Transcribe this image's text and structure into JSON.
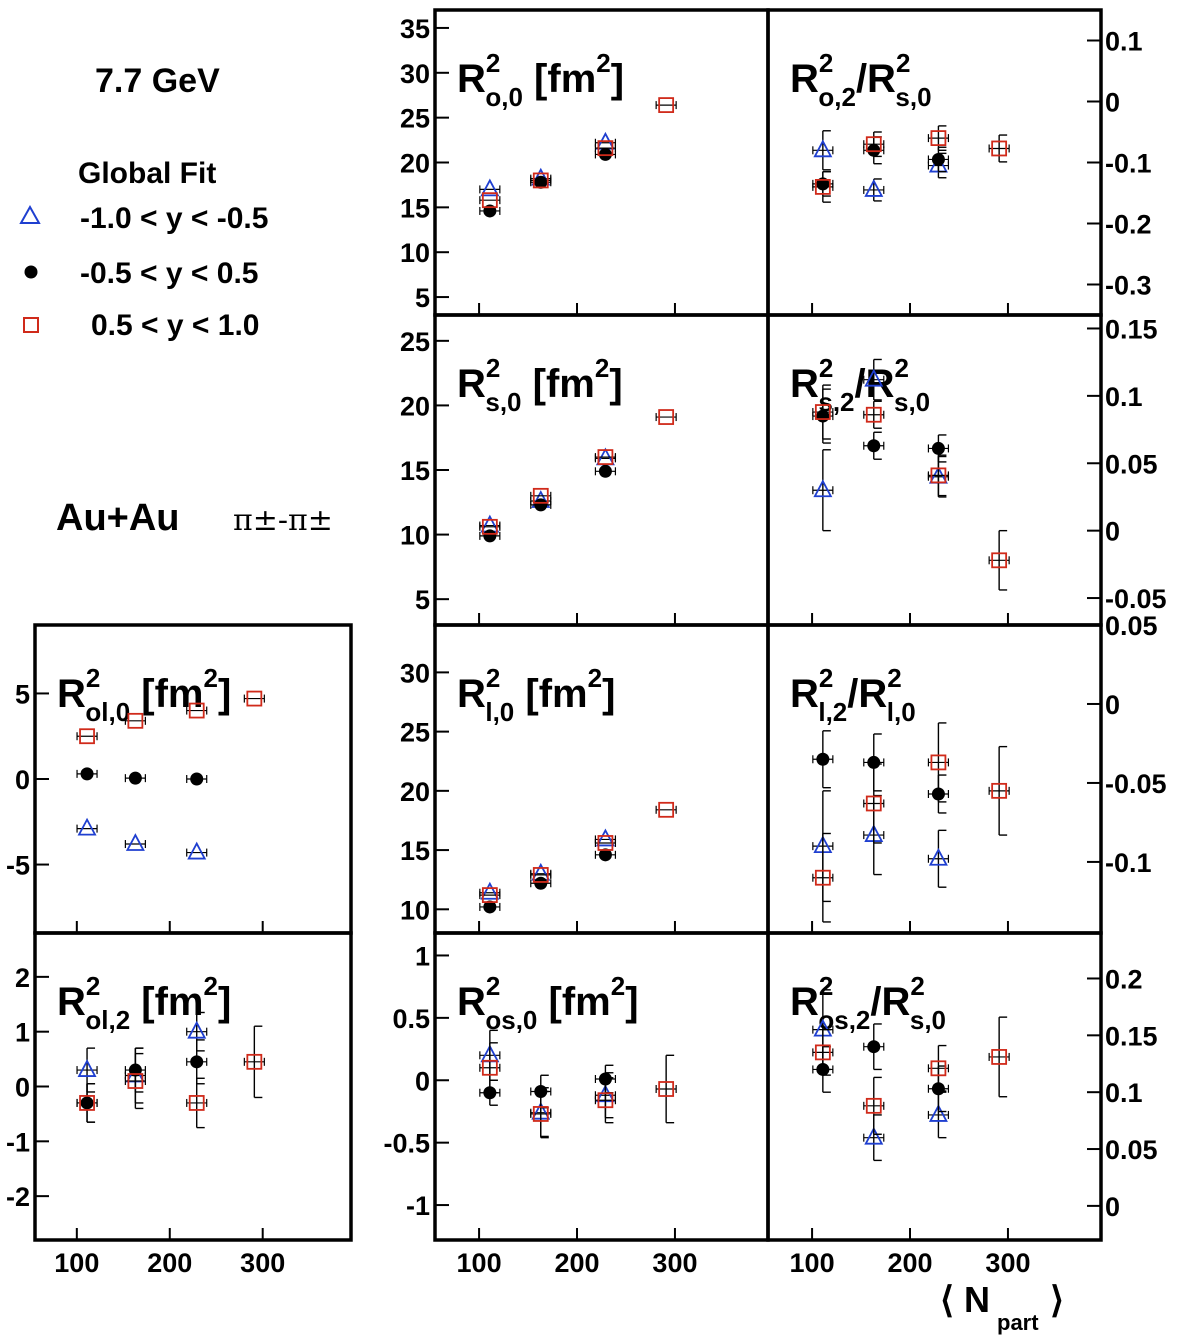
{
  "energy_label": "7.7 GeV",
  "legend_title": "Global Fit",
  "system_label": "Au+Au",
  "pair_label": "π±-π±",
  "xaxis_label": "⟨ N",
  "xaxis_label_sub": "part",
  "xaxis_label_end": "⟩",
  "legend": [
    {
      "label": "-1.0 < y < -0.5",
      "marker": "triangle",
      "color": "#1f3fd0"
    },
    {
      "label": "-0.5 < y < 0.5",
      "marker": "circle",
      "color": "#000000"
    },
    {
      "label": "0.5 < y < 1.0",
      "marker": "square",
      "color": "#d02a1a"
    }
  ],
  "chart_data": [
    {
      "id": "Ro0",
      "type": "scatter",
      "title": {
        "main": "R",
        "sup": "2",
        "sub": "o,0",
        "suffix": " [fm",
        "suffix_sup": "2",
        "suffix_end": "]"
      },
      "xlim": [
        55,
        395
      ],
      "ylim": [
        3,
        37
      ],
      "yticks": [
        5,
        10,
        15,
        20,
        25,
        30,
        35
      ],
      "ytick_side": "left",
      "xticks": [
        100,
        200,
        300
      ],
      "xtick_labels": false,
      "series": [
        {
          "marker": "triangle",
          "points": [
            [
              111,
              17.0,
              0
            ],
            [
              163,
              18.2,
              0
            ],
            [
              229,
              22.2,
              0
            ]
          ]
        },
        {
          "marker": "circle",
          "points": [
            [
              111,
              14.6,
              0
            ],
            [
              163,
              17.8,
              0
            ],
            [
              229,
              20.9,
              0
            ]
          ]
        },
        {
          "marker": "square",
          "points": [
            [
              111,
              15.8,
              0
            ],
            [
              163,
              18.0,
              0
            ],
            [
              229,
              21.6,
              0
            ],
            [
              291,
              26.4,
              0
            ]
          ]
        }
      ]
    },
    {
      "id": "Ro2",
      "type": "scatter",
      "title": {
        "main": "R",
        "sup": "2",
        "sub": "o,2",
        "suffix": "/R",
        "suffix_sup": "2",
        "suffix_sub": "s,0",
        "suffix_end": ""
      },
      "xlim": [
        55,
        395
      ],
      "ylim": [
        -0.35,
        0.15
      ],
      "yticks": [
        -0.3,
        -0.2,
        -0.1,
        0,
        0.1
      ],
      "ytick_labels": [
        "-0.3",
        "-0.2",
        "-0.1",
        "0",
        "0.1"
      ],
      "ytick_side": "right",
      "xticks": [
        100,
        200,
        300
      ],
      "xtick_labels": false,
      "series": [
        {
          "marker": "triangle",
          "points": [
            [
              111,
              -0.08,
              0.032
            ],
            [
              163,
              -0.145,
              0.018
            ],
            [
              229,
              -0.105,
              0.02
            ]
          ]
        },
        {
          "marker": "circle",
          "points": [
            [
              111,
              -0.135,
              0.02
            ],
            [
              163,
              -0.08,
              0.022
            ],
            [
              229,
              -0.095,
              0.02
            ]
          ]
        },
        {
          "marker": "square",
          "points": [
            [
              111,
              -0.14,
              0.025
            ],
            [
              163,
              -0.07,
              0.02
            ],
            [
              229,
              -0.06,
              0.02
            ],
            [
              291,
              -0.077,
              0.022
            ]
          ]
        }
      ]
    },
    {
      "id": "Rs0",
      "type": "scatter",
      "title": {
        "main": "R",
        "sup": "2",
        "sub": "s,0",
        "suffix": " [fm",
        "suffix_sup": "2",
        "suffix_end": "]"
      },
      "xlim": [
        55,
        395
      ],
      "ylim": [
        3,
        27
      ],
      "yticks": [
        5,
        10,
        15,
        20,
        25
      ],
      "ytick_side": "left",
      "xticks": [
        100,
        200,
        300
      ],
      "xtick_labels": false,
      "series": [
        {
          "marker": "triangle",
          "points": [
            [
              111,
              10.7,
              0
            ],
            [
              163,
              12.6,
              0
            ],
            [
              229,
              15.9,
              0
            ]
          ]
        },
        {
          "marker": "circle",
          "points": [
            [
              111,
              9.9,
              0
            ],
            [
              163,
              12.3,
              0
            ],
            [
              229,
              14.9,
              0
            ]
          ]
        },
        {
          "marker": "square",
          "points": [
            [
              111,
              10.6,
              0
            ],
            [
              163,
              13.0,
              0
            ],
            [
              229,
              16.0,
              0
            ],
            [
              291,
              19.1,
              0
            ]
          ]
        }
      ]
    },
    {
      "id": "Rs2",
      "type": "scatter",
      "title": {
        "main": "R",
        "sup": "2",
        "sub": "s,2",
        "suffix": "/R",
        "suffix_sup": "2",
        "suffix_sub": "s,0",
        "suffix_end": ""
      },
      "xlim": [
        55,
        395
      ],
      "ylim": [
        -0.07,
        0.16
      ],
      "yticks": [
        -0.05,
        0,
        0.05,
        0.1,
        0.15
      ],
      "ytick_labels": [
        "-0.05",
        "0",
        "0.05",
        "0.1",
        "0.15"
      ],
      "ytick_side": "right",
      "xticks": [
        100,
        200,
        300
      ],
      "xtick_labels": false,
      "series": [
        {
          "marker": "triangle",
          "points": [
            [
              111,
              0.03,
              0.03
            ],
            [
              163,
              0.112,
              0.015
            ],
            [
              229,
              0.04,
              0.015
            ]
          ]
        },
        {
          "marker": "circle",
          "points": [
            [
              111,
              0.085,
              0.02
            ],
            [
              163,
              0.063,
              0.01
            ],
            [
              229,
              0.061,
              0.01
            ]
          ]
        },
        {
          "marker": "square",
          "points": [
            [
              111,
              0.088,
              0.02
            ],
            [
              163,
              0.086,
              0.01
            ],
            [
              229,
              0.041,
              0.015
            ],
            [
              291,
              -0.022,
              0.022
            ]
          ]
        }
      ]
    },
    {
      "id": "Rl0",
      "type": "scatter",
      "title": {
        "main": "R",
        "sup": "2",
        "sub": "l,0",
        "suffix": " [fm",
        "suffix_sup": "2",
        "suffix_end": "]"
      },
      "xlim": [
        55,
        395
      ],
      "ylim": [
        8,
        34
      ],
      "yticks": [
        10,
        15,
        20,
        25,
        30
      ],
      "ytick_side": "left",
      "xticks": [
        100,
        200,
        300
      ],
      "xtick_labels": false,
      "series": [
        {
          "marker": "triangle",
          "points": [
            [
              111,
              11.4,
              0
            ],
            [
              163,
              13.0,
              0
            ],
            [
              229,
              15.9,
              0
            ]
          ]
        },
        {
          "marker": "circle",
          "points": [
            [
              111,
              10.2,
              0
            ],
            [
              163,
              12.2,
              0
            ],
            [
              229,
              14.6,
              0
            ]
          ]
        },
        {
          "marker": "square",
          "points": [
            [
              111,
              11.2,
              0
            ],
            [
              163,
              12.9,
              0
            ],
            [
              229,
              15.6,
              0
            ],
            [
              291,
              18.4,
              0
            ]
          ]
        }
      ]
    },
    {
      "id": "Rl2",
      "type": "scatter",
      "title": {
        "main": "R",
        "sup": "2",
        "sub": "l,2",
        "suffix": "/R",
        "suffix_sup": "2",
        "suffix_sub": "l,0",
        "suffix_end": ""
      },
      "xlim": [
        55,
        395
      ],
      "ylim": [
        -0.145,
        0.05
      ],
      "yticks": [
        -0.1,
        -0.05,
        0,
        0.05
      ],
      "ytick_labels": [
        "-0.1",
        "-0.05",
        "0",
        "0.05"
      ],
      "ytick_side": "right",
      "xticks": [
        100,
        200,
        300
      ],
      "xtick_labels": false,
      "series": [
        {
          "marker": "triangle",
          "points": [
            [
              111,
              -0.09,
              0.035
            ],
            [
              163,
              -0.083,
              0.025
            ],
            [
              229,
              -0.098,
              0.018
            ]
          ]
        },
        {
          "marker": "circle",
          "points": [
            [
              111,
              -0.035,
              0.018
            ],
            [
              163,
              -0.037,
              0.018
            ],
            [
              229,
              -0.057,
              0.012
            ]
          ]
        },
        {
          "marker": "square",
          "points": [
            [
              111,
              -0.11,
              0.028
            ],
            [
              163,
              -0.063,
              0.025
            ],
            [
              229,
              -0.037,
              0.025
            ],
            [
              291,
              -0.055,
              0.028
            ]
          ]
        }
      ]
    },
    {
      "id": "Rol0",
      "type": "scatter",
      "title": {
        "main": "R",
        "sup": "2",
        "sub": "ol,0",
        "suffix": " [fm",
        "suffix_sup": "2",
        "suffix_end": "]"
      },
      "xlim": [
        55,
        395
      ],
      "ylim": [
        -9,
        9
      ],
      "yticks": [
        -5,
        0,
        5
      ],
      "ytick_labels": [
        "-5",
        "0",
        "5"
      ],
      "ytick_side": "left",
      "xticks": [
        100,
        200,
        300
      ],
      "xtick_labels": false,
      "series": [
        {
          "marker": "triangle",
          "points": [
            [
              111,
              -2.9,
              0
            ],
            [
              163,
              -3.8,
              0
            ],
            [
              229,
              -4.3,
              0
            ]
          ]
        },
        {
          "marker": "circle",
          "points": [
            [
              111,
              0.3,
              0
            ],
            [
              163,
              0.05,
              0
            ],
            [
              229,
              0.0,
              0
            ]
          ]
        },
        {
          "marker": "square",
          "points": [
            [
              111,
              2.5,
              0
            ],
            [
              163,
              3.4,
              0
            ],
            [
              229,
              4.0,
              0
            ],
            [
              291,
              4.7,
              0
            ]
          ]
        }
      ]
    },
    {
      "id": "Rol2",
      "type": "scatter",
      "title": {
        "main": "R",
        "sup": "2",
        "sub": "ol,2",
        "suffix": " [fm",
        "suffix_sup": "2",
        "suffix_end": "]"
      },
      "xlim": [
        55,
        395
      ],
      "ylim": [
        -2.8,
        2.8
      ],
      "yticks": [
        -2,
        -1,
        0,
        1,
        2
      ],
      "ytick_labels": [
        "-2",
        "-1",
        "0",
        "1",
        "2"
      ],
      "ytick_side": "left",
      "xticks": [
        100,
        200,
        300
      ],
      "xtick_labels": true,
      "series": [
        {
          "marker": "triangle",
          "points": [
            [
              111,
              0.3,
              0.4
            ],
            [
              163,
              0.2,
              0.5
            ],
            [
              229,
              1.0,
              0.35
            ]
          ]
        },
        {
          "marker": "circle",
          "points": [
            [
              111,
              -0.3,
              0.35
            ],
            [
              163,
              0.3,
              0.4
            ],
            [
              229,
              0.45,
              0.4
            ]
          ]
        },
        {
          "marker": "square",
          "points": [
            [
              111,
              -0.3,
              0.35
            ],
            [
              163,
              0.1,
              0.5
            ],
            [
              229,
              -0.3,
              0.45
            ],
            [
              291,
              0.45,
              0.65
            ]
          ]
        }
      ]
    },
    {
      "id": "Ros0",
      "type": "scatter",
      "title": {
        "main": "R",
        "sup": "2",
        "sub": "os,0",
        "suffix": " [fm",
        "suffix_sup": "2",
        "suffix_end": "]"
      },
      "xlim": [
        55,
        395
      ],
      "ylim": [
        -1.28,
        1.18
      ],
      "yticks": [
        -1,
        -0.5,
        0,
        0.5,
        1
      ],
      "ytick_labels": [
        "-1",
        "-0.5",
        "0",
        "0.5",
        "1"
      ],
      "ytick_side": "left",
      "xticks": [
        100,
        200,
        300
      ],
      "xtick_labels": true,
      "series": [
        {
          "marker": "triangle",
          "points": [
            [
              111,
              0.2,
              0.2
            ],
            [
              163,
              -0.26,
              0.2
            ],
            [
              229,
              -0.12,
              0.18
            ]
          ]
        },
        {
          "marker": "circle",
          "points": [
            [
              111,
              -0.1,
              0.1
            ],
            [
              163,
              -0.09,
              0.13
            ],
            [
              229,
              0.01,
              0.11
            ]
          ]
        },
        {
          "marker": "square",
          "points": [
            [
              111,
              0.1,
              0.2
            ],
            [
              163,
              -0.27,
              0.18
            ],
            [
              229,
              -0.16,
              0.18
            ],
            [
              291,
              -0.07,
              0.27
            ]
          ]
        }
      ]
    },
    {
      "id": "Ros2",
      "type": "scatter",
      "title": {
        "main": "R",
        "sup": "2",
        "sub": "os,2",
        "suffix": "/R",
        "suffix_sup": "2",
        "suffix_sub": "s,0",
        "suffix_end": ""
      },
      "xlim": [
        55,
        395
      ],
      "ylim": [
        -0.03,
        0.24
      ],
      "yticks": [
        0,
        0.05,
        0.1,
        0.15,
        0.2
      ],
      "ytick_labels": [
        "0",
        "0.05",
        "0.1",
        "0.15",
        "0.2"
      ],
      "ytick_side": "right",
      "xticks": [
        100,
        200,
        300
      ],
      "xtick_labels": true,
      "series": [
        {
          "marker": "triangle",
          "points": [
            [
              111,
              0.155,
              0.035
            ],
            [
              163,
              0.06,
              0.02
            ],
            [
              229,
              0.08,
              0.02
            ]
          ]
        },
        {
          "marker": "circle",
          "points": [
            [
              111,
              0.12,
              0.02
            ],
            [
              163,
              0.14,
              0.02
            ],
            [
              229,
              0.103,
              0.02
            ]
          ]
        },
        {
          "marker": "square",
          "points": [
            [
              111,
              0.135,
              0.02
            ],
            [
              163,
              0.088,
              0.025
            ],
            [
              229,
              0.121,
              0.02
            ],
            [
              291,
              0.131,
              0.035
            ]
          ]
        }
      ]
    }
  ]
}
